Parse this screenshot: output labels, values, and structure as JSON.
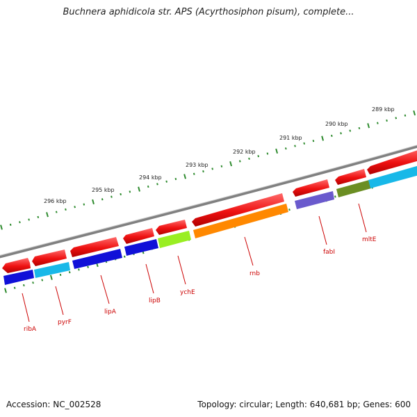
{
  "title": "Buchnera aphidicola str. APS (Acyrthosiphon pisum), complete...",
  "accession": "Accession: NC_002528",
  "summary": "Topology: circular; Length: 640,681 bp; Genes: 600",
  "scale_labels": [
    "296 kbp",
    "295 kbp",
    "294 kbp",
    "293 kbp",
    "292 kbp",
    "291 kbp",
    "290 kbp",
    "289 kbp"
  ],
  "genes": [
    {
      "name": "ribA",
      "color": "#1010d8"
    },
    {
      "name": "pyrF",
      "color": "#18b8e8"
    },
    {
      "name": "lipA",
      "color": "#1010d8"
    },
    {
      "name": "lipB",
      "color": "#1010d8"
    },
    {
      "name": "ychE",
      "color": "#99ee22"
    },
    {
      "name": "rnb",
      "color": "#ff8800"
    },
    {
      "name": "fabI",
      "color": "#6a5acd"
    },
    {
      "name": "mltE",
      "color": "#6b8e23"
    }
  ],
  "colors": {
    "cds_strand": "#ee1111",
    "backbone": "#808080",
    "tick": "#2e8b2e",
    "label": "#cc0000"
  }
}
